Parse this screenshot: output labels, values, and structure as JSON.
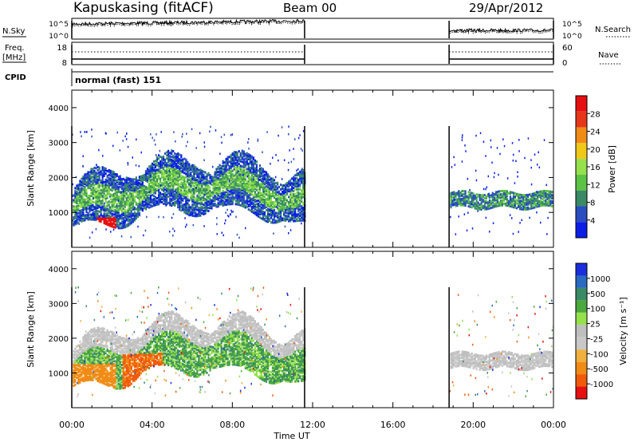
{
  "header": {
    "station": "Kapuskasing (fitACF)",
    "beam": "Beam 00",
    "date": "29/Apr/2012"
  },
  "labels": {
    "nsky": "N.Sky",
    "nsearch": "N.Search",
    "freq_line1": "Freq.",
    "freq_line2": "[MHz]",
    "nave": "Nave",
    "cpid": "CPID",
    "cpid_value": "normal (fast) 151",
    "slant_range": "Slant Range [km]",
    "power": "Power [dB]",
    "velocity": "Velocity [m s⁻¹]",
    "time_axis": "Time UT"
  },
  "colors": {
    "power": [
      "#0a1ee6",
      "#2a4ec0",
      "#3a8a66",
      "#5cc244",
      "#96e04c",
      "#f0c818",
      "#f08c16",
      "#e63818",
      "#e61010"
    ],
    "velocity": [
      "#e61010",
      "#f05a0a",
      "#f08c16",
      "#f0b040",
      "#c8c8c8",
      "#bebebe",
      "#96e04c",
      "#4aa83c",
      "#3a8a66",
      "#2a6ac0",
      "#1a2edc"
    ]
  },
  "chart_data": [
    {
      "type": "line",
      "title": "N.Sky / N.Search",
      "x_unit": "hours UT",
      "xlim": [
        0,
        24
      ],
      "y_ticks": [
        "10^5",
        "10^0"
      ],
      "right_ticks": [
        "10^5",
        "10^0"
      ],
      "gap": [
        11.6,
        18.8
      ]
    },
    {
      "type": "line",
      "title": "Freq. / Nave",
      "xlim": [
        0,
        24
      ],
      "y_ticks": [
        "18",
        "8"
      ],
      "right_ticks": [
        "60",
        "0"
      ],
      "gap": [
        11.6,
        18.8
      ]
    },
    {
      "type": "heatmap",
      "quantity": "Power",
      "unit": "dB",
      "xlim": [
        0,
        24
      ],
      "ylim": [
        0,
        4500
      ],
      "y_ticks": [
        "4000",
        "3000",
        "2000",
        "1000"
      ],
      "x_ticks": [
        "00:00",
        "04:00",
        "08:00",
        "12:00",
        "16:00",
        "20:00",
        "00:00"
      ],
      "colorbar_ticks": [
        "28",
        "24",
        "20",
        "16",
        "12",
        "8",
        "4"
      ],
      "data_segments": [
        [
          0,
          11.6
        ],
        [
          18.8,
          24
        ]
      ]
    },
    {
      "type": "heatmap",
      "quantity": "Velocity",
      "unit": "m/s",
      "xlim": [
        0,
        24
      ],
      "ylim": [
        0,
        4500
      ],
      "y_ticks": [
        "4000",
        "3000",
        "2000",
        "1000"
      ],
      "x_ticks": [
        "00:00",
        "04:00",
        "08:00",
        "12:00",
        "16:00",
        "20:00",
        "00:00"
      ],
      "colorbar_ticks": [
        "1000",
        "500",
        "100",
        "25",
        "-25",
        "-100",
        "-500",
        "-1000"
      ],
      "data_segments": [
        [
          0,
          11.6
        ],
        [
          18.8,
          24
        ]
      ]
    }
  ]
}
